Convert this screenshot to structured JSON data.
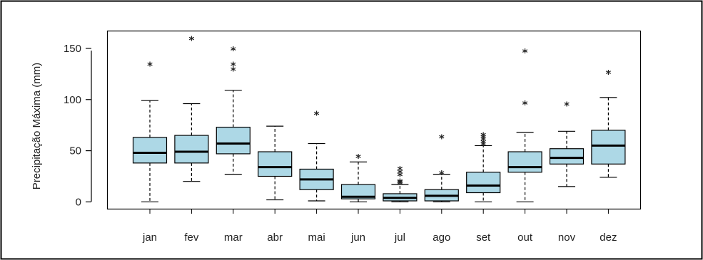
{
  "chart_data": {
    "type": "boxplot",
    "title": "",
    "xlabel": "",
    "ylabel": "Precipitação Máxima (mm)",
    "ylim": [
      -7,
      167
    ],
    "yticks": [
      0,
      50,
      100,
      150
    ],
    "grid": false,
    "legend": "none",
    "colors": {
      "box_fill": "#add8e6",
      "stroke": "#000000",
      "outlier": "#222222"
    },
    "outlier_symbol": "*",
    "categories": [
      "jan",
      "fev",
      "mar",
      "abr",
      "mai",
      "jun",
      "jul",
      "ago",
      "set",
      "out",
      "nov",
      "dez"
    ],
    "boxes": [
      {
        "min": 0,
        "q1": 38,
        "median": 48,
        "q3": 63,
        "max": 99,
        "outliers": [
          135
        ]
      },
      {
        "min": 20,
        "q1": 38,
        "median": 49,
        "q3": 65,
        "max": 96,
        "outliers": [
          160
        ]
      },
      {
        "min": 27,
        "q1": 47,
        "median": 57,
        "q3": 73,
        "max": 109,
        "outliers": [
          130,
          135,
          150
        ]
      },
      {
        "min": 2,
        "q1": 25,
        "median": 34,
        "q3": 49,
        "max": 74,
        "outliers": []
      },
      {
        "min": 1,
        "q1": 12,
        "median": 22,
        "q3": 32,
        "max": 57,
        "outliers": [
          87
        ]
      },
      {
        "min": 0,
        "q1": 3,
        "median": 5,
        "q3": 17,
        "max": 39,
        "outliers": [
          45
        ]
      },
      {
        "min": 0,
        "q1": 1,
        "median": 4,
        "q3": 8,
        "max": 17,
        "outliers": [
          19,
          20,
          21,
          27,
          30,
          33
        ]
      },
      {
        "min": 0,
        "q1": 1,
        "median": 6,
        "q3": 12,
        "max": 27,
        "outliers": [
          29,
          64
        ]
      },
      {
        "min": 0,
        "q1": 9,
        "median": 16,
        "q3": 29,
        "max": 55,
        "outliers": [
          57,
          59,
          62,
          64,
          66
        ]
      },
      {
        "min": 0,
        "q1": 29,
        "median": 34,
        "q3": 49,
        "max": 68,
        "outliers": [
          97,
          148
        ]
      },
      {
        "min": 15,
        "q1": 37,
        "median": 43,
        "q3": 52,
        "max": 69,
        "outliers": [
          96
        ]
      },
      {
        "min": 24,
        "q1": 37,
        "median": 55,
        "q3": 70,
        "max": 102,
        "outliers": [
          127
        ]
      }
    ]
  }
}
